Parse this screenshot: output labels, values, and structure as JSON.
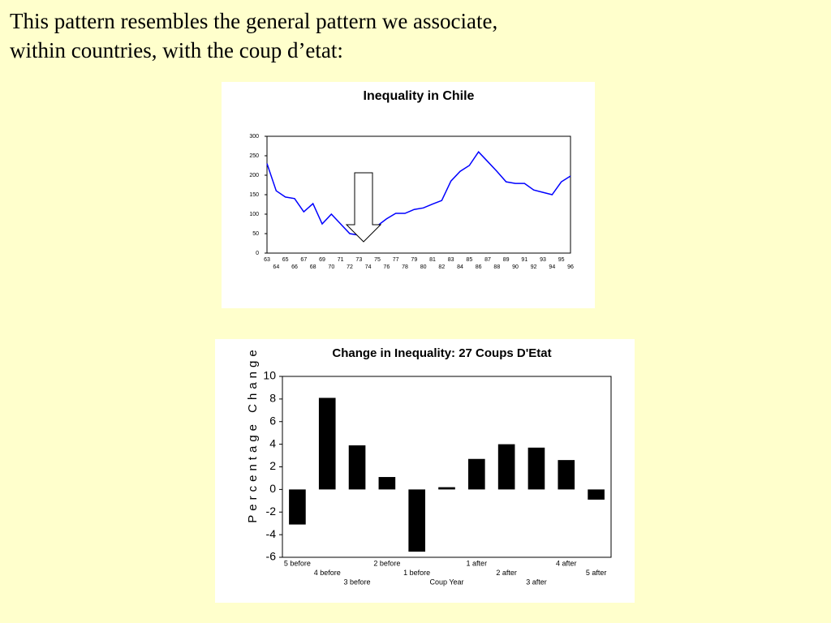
{
  "heading": {
    "lines": [
      "This pattern resembles the general pattern we associate,",
      "within countries, with the coup d’etat:"
    ]
  },
  "chart_data": [
    {
      "type": "line",
      "title": "Inequality in Chile",
      "categories": [
        "63",
        "64",
        "65",
        "66",
        "67",
        "68",
        "69",
        "70",
        "71",
        "72",
        "73",
        "74",
        "75",
        "76",
        "77",
        "78",
        "79",
        "80",
        "81",
        "82",
        "83",
        "84",
        "85",
        "86",
        "87",
        "88",
        "89",
        "90",
        "91",
        "92",
        "93",
        "94",
        "95",
        "96"
      ],
      "series": [
        {
          "color": "#0000ff",
          "values": [
            230,
            160,
            144,
            140,
            106,
            127,
            75,
            100,
            75,
            50,
            46,
            60,
            70,
            88,
            102,
            102,
            112,
            116,
            126,
            135,
            185,
            210,
            225,
            260,
            235,
            210,
            183,
            179,
            179,
            162,
            156,
            150,
            183,
            198
          ]
        }
      ],
      "ylim": [
        0,
        300
      ],
      "yticks": [
        0,
        50,
        100,
        150,
        200,
        250,
        300
      ]
    },
    {
      "type": "bar",
      "title": "Change in Inequality: 27 Coups D'Etat",
      "y_label": "Percentage Change",
      "categories": [
        "5 before",
        "4 before",
        "3 before",
        "2 before",
        "1 before",
        "Coup Year",
        "1 after",
        "2 after",
        "3 after",
        "4 after",
        "5 after"
      ],
      "color": "#000000",
      "values": [
        -3.1,
        8.1,
        3.9,
        1.1,
        -5.5,
        0.2,
        2.7,
        4.0,
        3.7,
        2.6,
        -0.9
      ],
      "ylim": [
        -6,
        10
      ],
      "yticks": [
        -6,
        -4,
        -2,
        0,
        2,
        4,
        6,
        8,
        10
      ]
    }
  ]
}
